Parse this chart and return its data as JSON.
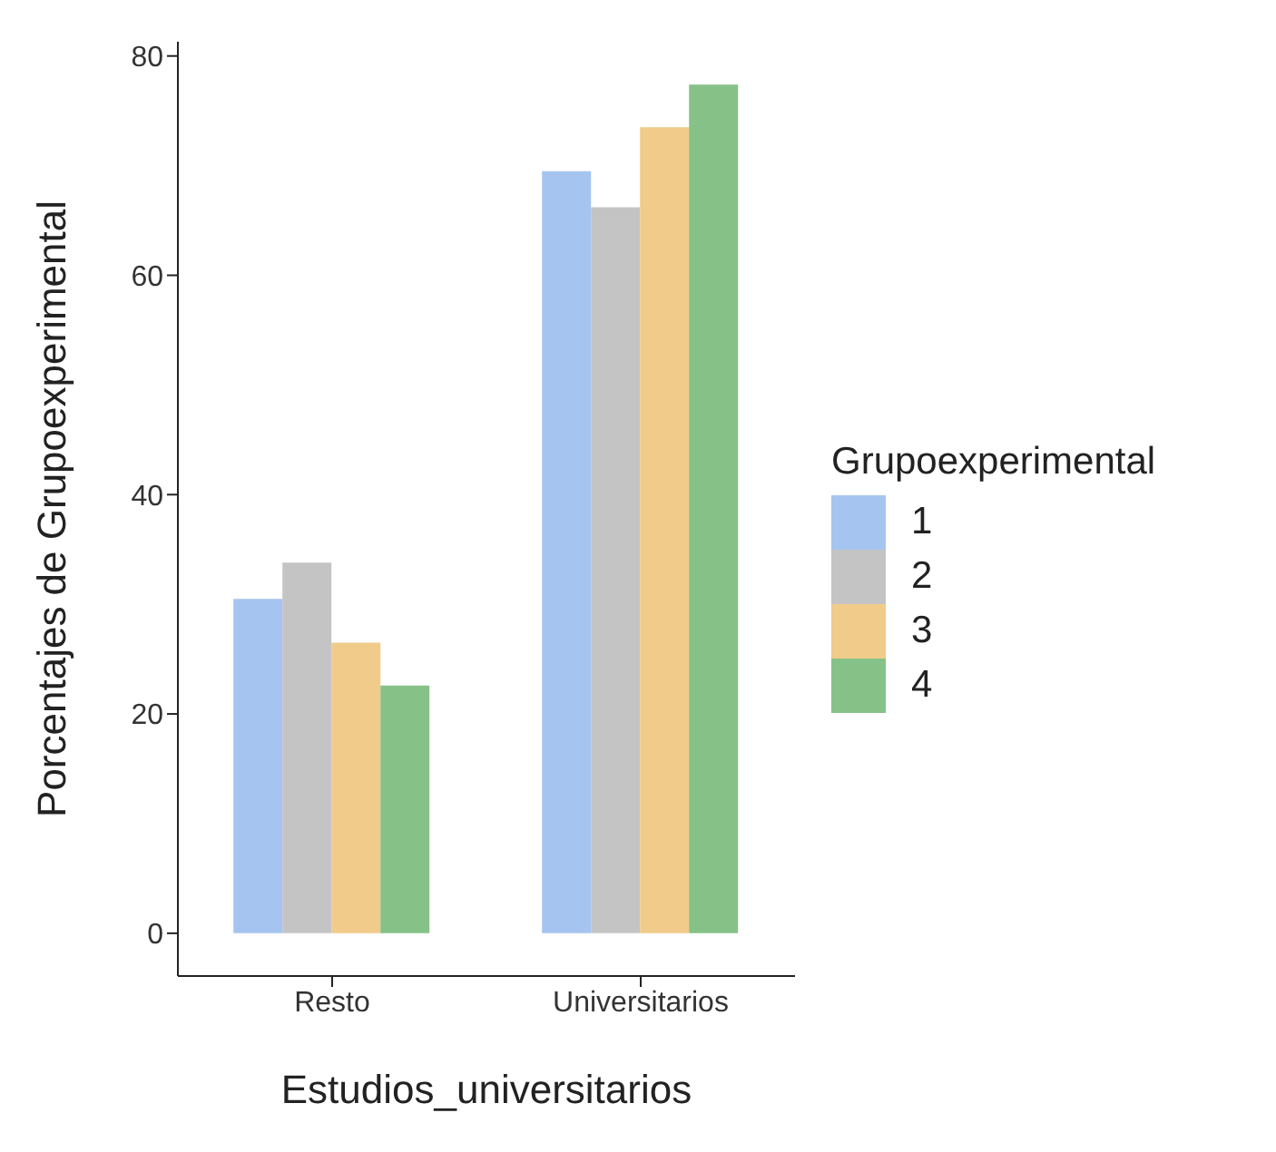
{
  "chart_data": {
    "type": "bar",
    "xlabel": "Estudios_universitarios",
    "ylabel": "Porcentajes de Grupoexperimental",
    "legend_title": "Grupoexperimental",
    "categories": [
      "Resto",
      "Universitarios"
    ],
    "series": [
      {
        "name": "1",
        "color": "#a6c4f0",
        "values": [
          30.5,
          69.5
        ]
      },
      {
        "name": "2",
        "color": "#c4c4c4",
        "values": [
          33.8,
          66.2
        ]
      },
      {
        "name": "3",
        "color": "#f0cb8a",
        "values": [
          26.5,
          73.5
        ]
      },
      {
        "name": "4",
        "color": "#86c288",
        "values": [
          22.6,
          77.4
        ]
      }
    ],
    "ylim": [
      -3.9,
      81.3
    ],
    "yticks": [
      0,
      20,
      40,
      60,
      80
    ],
    "grid": false,
    "legend": "right"
  }
}
